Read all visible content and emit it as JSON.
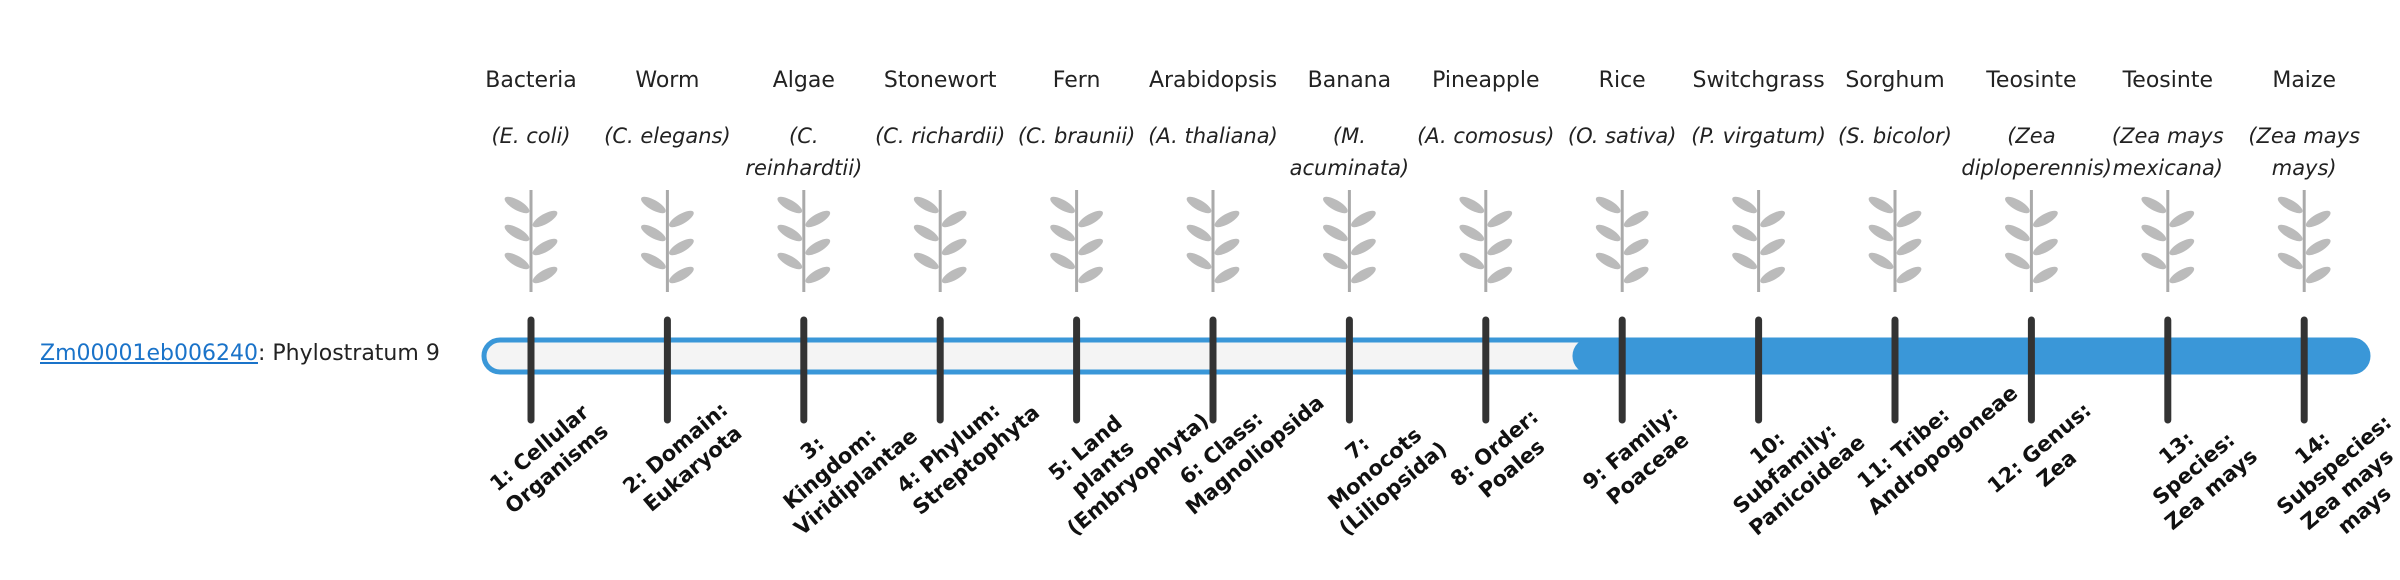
{
  "gene": {
    "id": "Zm00001eb006240",
    "label": ": Phylostratum",
    "phylostratum": 9
  },
  "organisms": [
    {
      "name": "Bacteria",
      "species": "(E. coli)"
    },
    {
      "name": "Worm",
      "species": "(C. elegans)"
    },
    {
      "name": "Algae",
      "species": "(C. reinhardtii)"
    },
    {
      "name": "Stonewort",
      "species": "(C. richardii)"
    },
    {
      "name": "Fern",
      "species": "(C. braunii)"
    },
    {
      "name": "Arabidopsis",
      "species": "(A. thaliana)"
    },
    {
      "name": "Banana",
      "species": "(M. acuminata)"
    },
    {
      "name": "Pineapple",
      "species": "(A. comosus)"
    },
    {
      "name": "Rice",
      "species": "(O. sativa)"
    },
    {
      "name": "Switchgrass",
      "species": "(P. virgatum)"
    },
    {
      "name": "Sorghum",
      "species": "(S. bicolor)"
    },
    {
      "name": "Teosinte",
      "species": "(Zea diploperennis)"
    },
    {
      "name": "Teosinte",
      "species": "(Zea mays mexicana)"
    },
    {
      "name": "Maize",
      "species": "(Zea mays mays)"
    }
  ],
  "strata": [
    "1: Cellular Organisms",
    "2: Domain: Eukaryota",
    "3: Kingdom: Viridiplantae",
    "4: Phylum: Streptophyta",
    "5: Land plants (Embryophyta)",
    "6: Class: Magnoliopsida",
    "7: Monocots (Liliopsida)",
    "8: Order: Poales",
    "9: Family: Poaceae",
    "10: Subfamily: Panicoideae",
    "11: Tribe: Andropogoneae",
    "12: Genus: Zea",
    "13: Species: Zea mays",
    "14: Subspecies: Zea mays mays"
  ]
}
